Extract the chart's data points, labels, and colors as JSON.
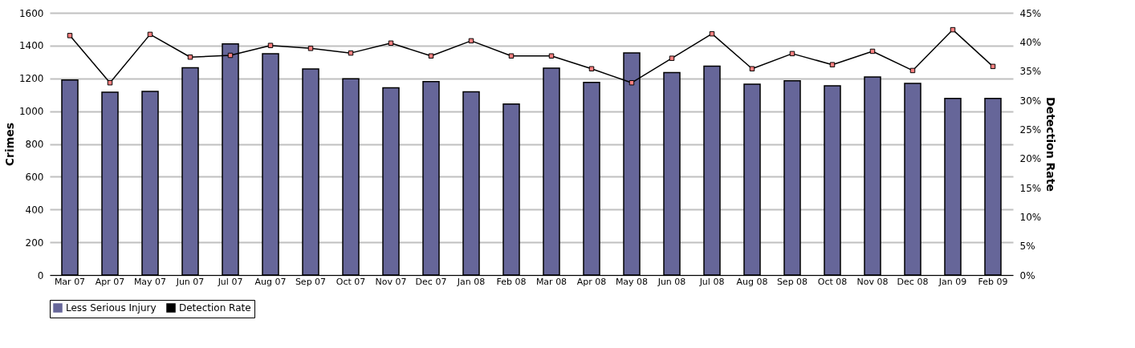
{
  "chart_data": {
    "type": "bar",
    "categories": [
      "Mar 07",
      "Apr 07",
      "May 07",
      "Jun 07",
      "Jul 07",
      "Aug 07",
      "Sep 07",
      "Oct 07",
      "Nov 07",
      "Dec 07",
      "Jan 08",
      "Feb 08",
      "Mar 08",
      "Apr 08",
      "May 08",
      "Jun 08",
      "Jul 08",
      "Aug 08",
      "Sep 08",
      "Oct 08",
      "Nov 08",
      "Dec 08",
      "Jan 09",
      "Feb 09"
    ],
    "ylabel": "Crimes",
    "y2label": "Detection Rate",
    "ylim": [
      0,
      1600
    ],
    "yticks": [
      0,
      200,
      400,
      600,
      800,
      1000,
      1200,
      1400,
      1600
    ],
    "y2lim": [
      0,
      45
    ],
    "y2ticks": [
      {
        "value": 0,
        "label": "0%"
      },
      {
        "value": 5,
        "label": "5%"
      },
      {
        "value": 10,
        "label": "10%"
      },
      {
        "value": 15,
        "label": "15%"
      },
      {
        "value": 20,
        "label": "20%"
      },
      {
        "value": 25,
        "label": "25%"
      },
      {
        "value": 30,
        "label": "30%"
      },
      {
        "value": 35,
        "label": "35%"
      },
      {
        "value": 40,
        "label": "40%"
      },
      {
        "value": 45,
        "label": "45%"
      }
    ],
    "series": [
      {
        "name": "Less Serious Injury",
        "color": "#666699",
        "values": [
          1190,
          1115,
          1120,
          1265,
          1410,
          1350,
          1258,
          1198,
          1143,
          1180,
          1118,
          1043,
          1262,
          1175,
          1355,
          1235,
          1275,
          1165,
          1185,
          1155,
          1208,
          1170,
          1078,
          1078
        ]
      },
      {
        "name": "Detection Rate",
        "type": "line",
        "axis": "y2",
        "color": "#000000",
        "marker": "square",
        "values": [
          41.1,
          33.0,
          41.3,
          37.4,
          37.7,
          39.4,
          38.9,
          38.1,
          39.8,
          37.6,
          40.2,
          37.6,
          37.6,
          35.4,
          33.0,
          37.2,
          41.4,
          35.4,
          38.0,
          36.1,
          38.4,
          35.1,
          42.1,
          35.8
        ]
      }
    ],
    "grid": "y",
    "legend": "bottom"
  }
}
